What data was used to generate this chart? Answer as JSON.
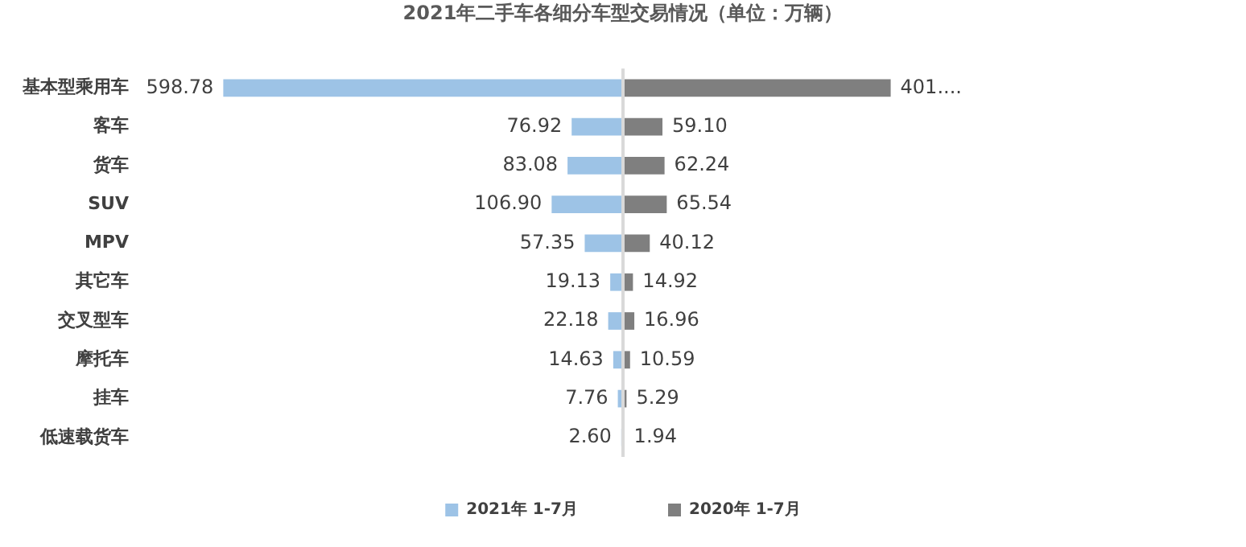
{
  "chart_data": [
    {
      "type": "bar",
      "orientation": "horizontal",
      "title": "2021年二手车各细分车型交易情况（单位：万辆）",
      "categories": [
        "基本型乘用车",
        "客车",
        "货车",
        "SUV",
        "MPV",
        "其它车",
        "交叉型车",
        "摩托车",
        "挂车",
        "低速载货车"
      ],
      "series": [
        {
          "name": "2021年 1-7月",
          "color": "#9dc3e6",
          "values": [
            598.78,
            76.92,
            83.08,
            106.9,
            57.35,
            19.13,
            22.18,
            14.63,
            7.76,
            2.6
          ],
          "value_labels": [
            "598.78",
            "76.92",
            "83.08",
            "106.90",
            "57.35",
            "19.13",
            "22.18",
            "14.63",
            "7.76",
            "2.60"
          ]
        }
      ],
      "legend": "bottom",
      "tick_labels": "y"
    },
    {
      "type": "bar",
      "orientation": "horizontal",
      "categories": [
        null,
        null,
        null,
        null,
        null,
        null,
        null,
        null,
        null,
        null
      ],
      "series": [
        {
          "name": "2020年 1-7月",
          "color": "#7f7f7f",
          "values": [
            401,
            59.1,
            62.24,
            65.54,
            40.12,
            14.92,
            16.96,
            10.59,
            5.29,
            1.94
          ],
          "value_labels": [
            "401....",
            "59.10",
            "62.24",
            "65.54",
            "40.12",
            "14.92",
            "16.96",
            "10.59",
            "5.29",
            "1.94"
          ]
        }
      ],
      "legend": "bottom",
      "tick_labels": false
    }
  ]
}
